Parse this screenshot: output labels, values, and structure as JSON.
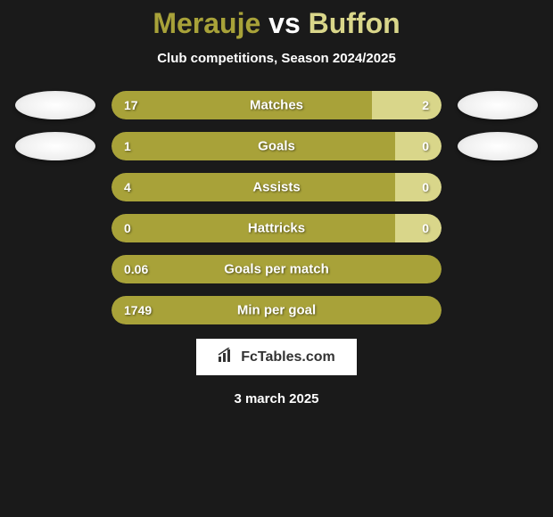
{
  "title": {
    "player1": "Merauje",
    "vs": "vs",
    "player2": "Buffon"
  },
  "subtitle": "Club competitions, Season 2024/2025",
  "colors": {
    "player1_bar": "#a8a239",
    "player2_bar": "#d9d68a",
    "background": "#1a1a1a",
    "text": "#ffffff"
  },
  "stats": [
    {
      "label": "Matches",
      "left_val": "17",
      "right_val": "2",
      "left_pct": 79,
      "right_pct": 21,
      "show_badges": true
    },
    {
      "label": "Goals",
      "left_val": "1",
      "right_val": "0",
      "left_pct": 86,
      "right_pct": 14,
      "show_badges": true
    },
    {
      "label": "Assists",
      "left_val": "4",
      "right_val": "0",
      "left_pct": 86,
      "right_pct": 14,
      "show_badges": false
    },
    {
      "label": "Hattricks",
      "left_val": "0",
      "right_val": "0",
      "left_pct": 86,
      "right_pct": 14,
      "show_badges": false
    },
    {
      "label": "Goals per match",
      "left_val": "0.06",
      "right_val": "",
      "left_pct": 100,
      "right_pct": 0,
      "show_badges": false
    },
    {
      "label": "Min per goal",
      "left_val": "1749",
      "right_val": "",
      "left_pct": 100,
      "right_pct": 0,
      "show_badges": false
    }
  ],
  "attribution": "FcTables.com",
  "date": "3 march 2025"
}
